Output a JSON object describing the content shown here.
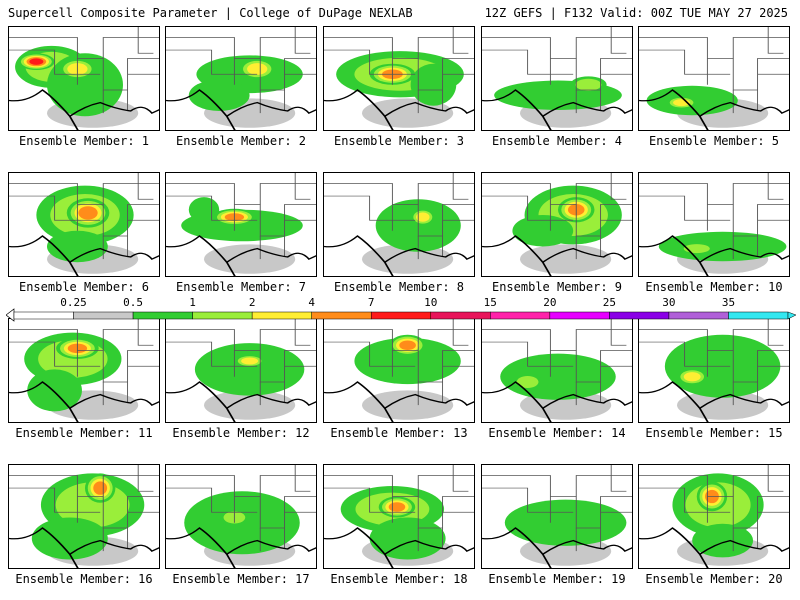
{
  "header": {
    "left_title": "Supercell Composite Parameter | College of DuPage NEXLAB",
    "right_title": "12Z GEFS | F132 Valid: 00Z TUE MAY 27 2025"
  },
  "legend": {
    "ticks": [
      "0.25",
      "0.5",
      "1",
      "2",
      "4",
      "7",
      "10",
      "15",
      "20",
      "25",
      "30",
      "35"
    ],
    "colors": [
      "#ffffff",
      "#c8c8c8",
      "#32cd32",
      "#9aee3a",
      "#ffee33",
      "#ff8c1a",
      "#ff1a1a",
      "#e8145a",
      "#ff22aa",
      "#e600ff",
      "#8a00e6",
      "#b060d8",
      "#33e8f0"
    ]
  },
  "panels": [
    {
      "label": "Ensemble Member: 1",
      "blobs": [
        [
          0.28,
          0.38,
          0.24,
          0.2,
          3
        ],
        [
          0.18,
          0.33,
          0.12,
          0.08,
          6
        ],
        [
          0.5,
          0.55,
          0.25,
          0.3,
          2
        ],
        [
          0.45,
          0.4,
          0.12,
          0.1,
          4
        ]
      ]
    },
    {
      "label": "Ensemble Member: 2",
      "blobs": [
        [
          0.55,
          0.45,
          0.35,
          0.18,
          2
        ],
        [
          0.6,
          0.4,
          0.12,
          0.1,
          4
        ],
        [
          0.35,
          0.65,
          0.2,
          0.15,
          2
        ]
      ]
    },
    {
      "label": "Ensemble Member: 3",
      "blobs": [
        [
          0.5,
          0.45,
          0.42,
          0.22,
          3
        ],
        [
          0.45,
          0.45,
          0.15,
          0.1,
          5
        ],
        [
          0.72,
          0.55,
          0.15,
          0.2,
          2
        ]
      ]
    },
    {
      "label": "Ensemble Member: 4",
      "blobs": [
        [
          0.5,
          0.65,
          0.42,
          0.14,
          2
        ],
        [
          0.7,
          0.55,
          0.12,
          0.08,
          3
        ]
      ]
    },
    {
      "label": "Ensemble Member: 5",
      "blobs": [
        [
          0.35,
          0.7,
          0.3,
          0.14,
          2
        ],
        [
          0.28,
          0.72,
          0.1,
          0.06,
          4
        ]
      ]
    },
    {
      "label": "Ensemble Member: 6",
      "blobs": [
        [
          0.5,
          0.4,
          0.32,
          0.28,
          3
        ],
        [
          0.52,
          0.38,
          0.14,
          0.14,
          5
        ],
        [
          0.45,
          0.7,
          0.2,
          0.15,
          2
        ]
      ]
    },
    {
      "label": "Ensemble Member: 7",
      "blobs": [
        [
          0.5,
          0.5,
          0.4,
          0.15,
          2
        ],
        [
          0.45,
          0.42,
          0.14,
          0.08,
          5
        ],
        [
          0.25,
          0.35,
          0.1,
          0.12,
          2
        ]
      ]
    },
    {
      "label": "Ensemble Member: 8",
      "blobs": [
        [
          0.62,
          0.5,
          0.28,
          0.25,
          2
        ],
        [
          0.65,
          0.42,
          0.08,
          0.08,
          4
        ]
      ]
    },
    {
      "label": "Ensemble Member: 9",
      "blobs": [
        [
          0.6,
          0.4,
          0.32,
          0.28,
          3
        ],
        [
          0.62,
          0.35,
          0.12,
          0.12,
          5
        ],
        [
          0.4,
          0.55,
          0.2,
          0.15,
          2
        ]
      ]
    },
    {
      "label": "Ensemble Member: 10",
      "blobs": [
        [
          0.55,
          0.7,
          0.42,
          0.14,
          2
        ],
        [
          0.38,
          0.72,
          0.12,
          0.06,
          3
        ]
      ]
    },
    {
      "label": "Ensemble Member: 11",
      "blobs": [
        [
          0.42,
          0.38,
          0.32,
          0.25,
          3
        ],
        [
          0.45,
          0.28,
          0.14,
          0.1,
          5
        ],
        [
          0.3,
          0.68,
          0.18,
          0.2,
          2
        ]
      ]
    },
    {
      "label": "Ensemble Member: 12",
      "blobs": [
        [
          0.55,
          0.48,
          0.36,
          0.25,
          2
        ],
        [
          0.55,
          0.4,
          0.1,
          0.06,
          4
        ],
        [
          0.4,
          0.7,
          0.2,
          0.15,
          1
        ]
      ]
    },
    {
      "label": "Ensemble Member: 13",
      "blobs": [
        [
          0.55,
          0.4,
          0.35,
          0.22,
          2
        ],
        [
          0.55,
          0.25,
          0.12,
          0.1,
          5
        ],
        [
          0.4,
          0.7,
          0.15,
          0.15,
          1
        ]
      ]
    },
    {
      "label": "Ensemble Member: 14",
      "blobs": [
        [
          0.5,
          0.55,
          0.38,
          0.22,
          2
        ],
        [
          0.3,
          0.6,
          0.1,
          0.08,
          3
        ]
      ]
    },
    {
      "label": "Ensemble Member: 15",
      "blobs": [
        [
          0.55,
          0.45,
          0.38,
          0.3,
          2
        ],
        [
          0.35,
          0.55,
          0.1,
          0.08,
          4
        ],
        [
          0.6,
          0.6,
          0.2,
          0.18,
          1
        ]
      ]
    },
    {
      "label": "Ensemble Member: 16",
      "blobs": [
        [
          0.55,
          0.38,
          0.34,
          0.3,
          3
        ],
        [
          0.6,
          0.22,
          0.1,
          0.14,
          5
        ],
        [
          0.4,
          0.7,
          0.25,
          0.2,
          2
        ]
      ]
    },
    {
      "label": "Ensemble Member: 17",
      "blobs": [
        [
          0.5,
          0.55,
          0.38,
          0.3,
          2
        ],
        [
          0.45,
          0.5,
          0.1,
          0.08,
          3
        ]
      ]
    },
    {
      "label": "Ensemble Member: 18",
      "blobs": [
        [
          0.45,
          0.42,
          0.34,
          0.22,
          3
        ],
        [
          0.48,
          0.4,
          0.12,
          0.1,
          5
        ],
        [
          0.55,
          0.7,
          0.25,
          0.2,
          2
        ]
      ]
    },
    {
      "label": "Ensemble Member: 19",
      "blobs": [
        [
          0.55,
          0.55,
          0.4,
          0.22,
          2
        ],
        [
          0.55,
          0.7,
          0.2,
          0.15,
          1
        ]
      ]
    },
    {
      "label": "Ensemble Member: 20",
      "blobs": [
        [
          0.52,
          0.38,
          0.3,
          0.3,
          3
        ],
        [
          0.48,
          0.3,
          0.1,
          0.14,
          5
        ],
        [
          0.55,
          0.72,
          0.2,
          0.16,
          2
        ]
      ]
    }
  ]
}
